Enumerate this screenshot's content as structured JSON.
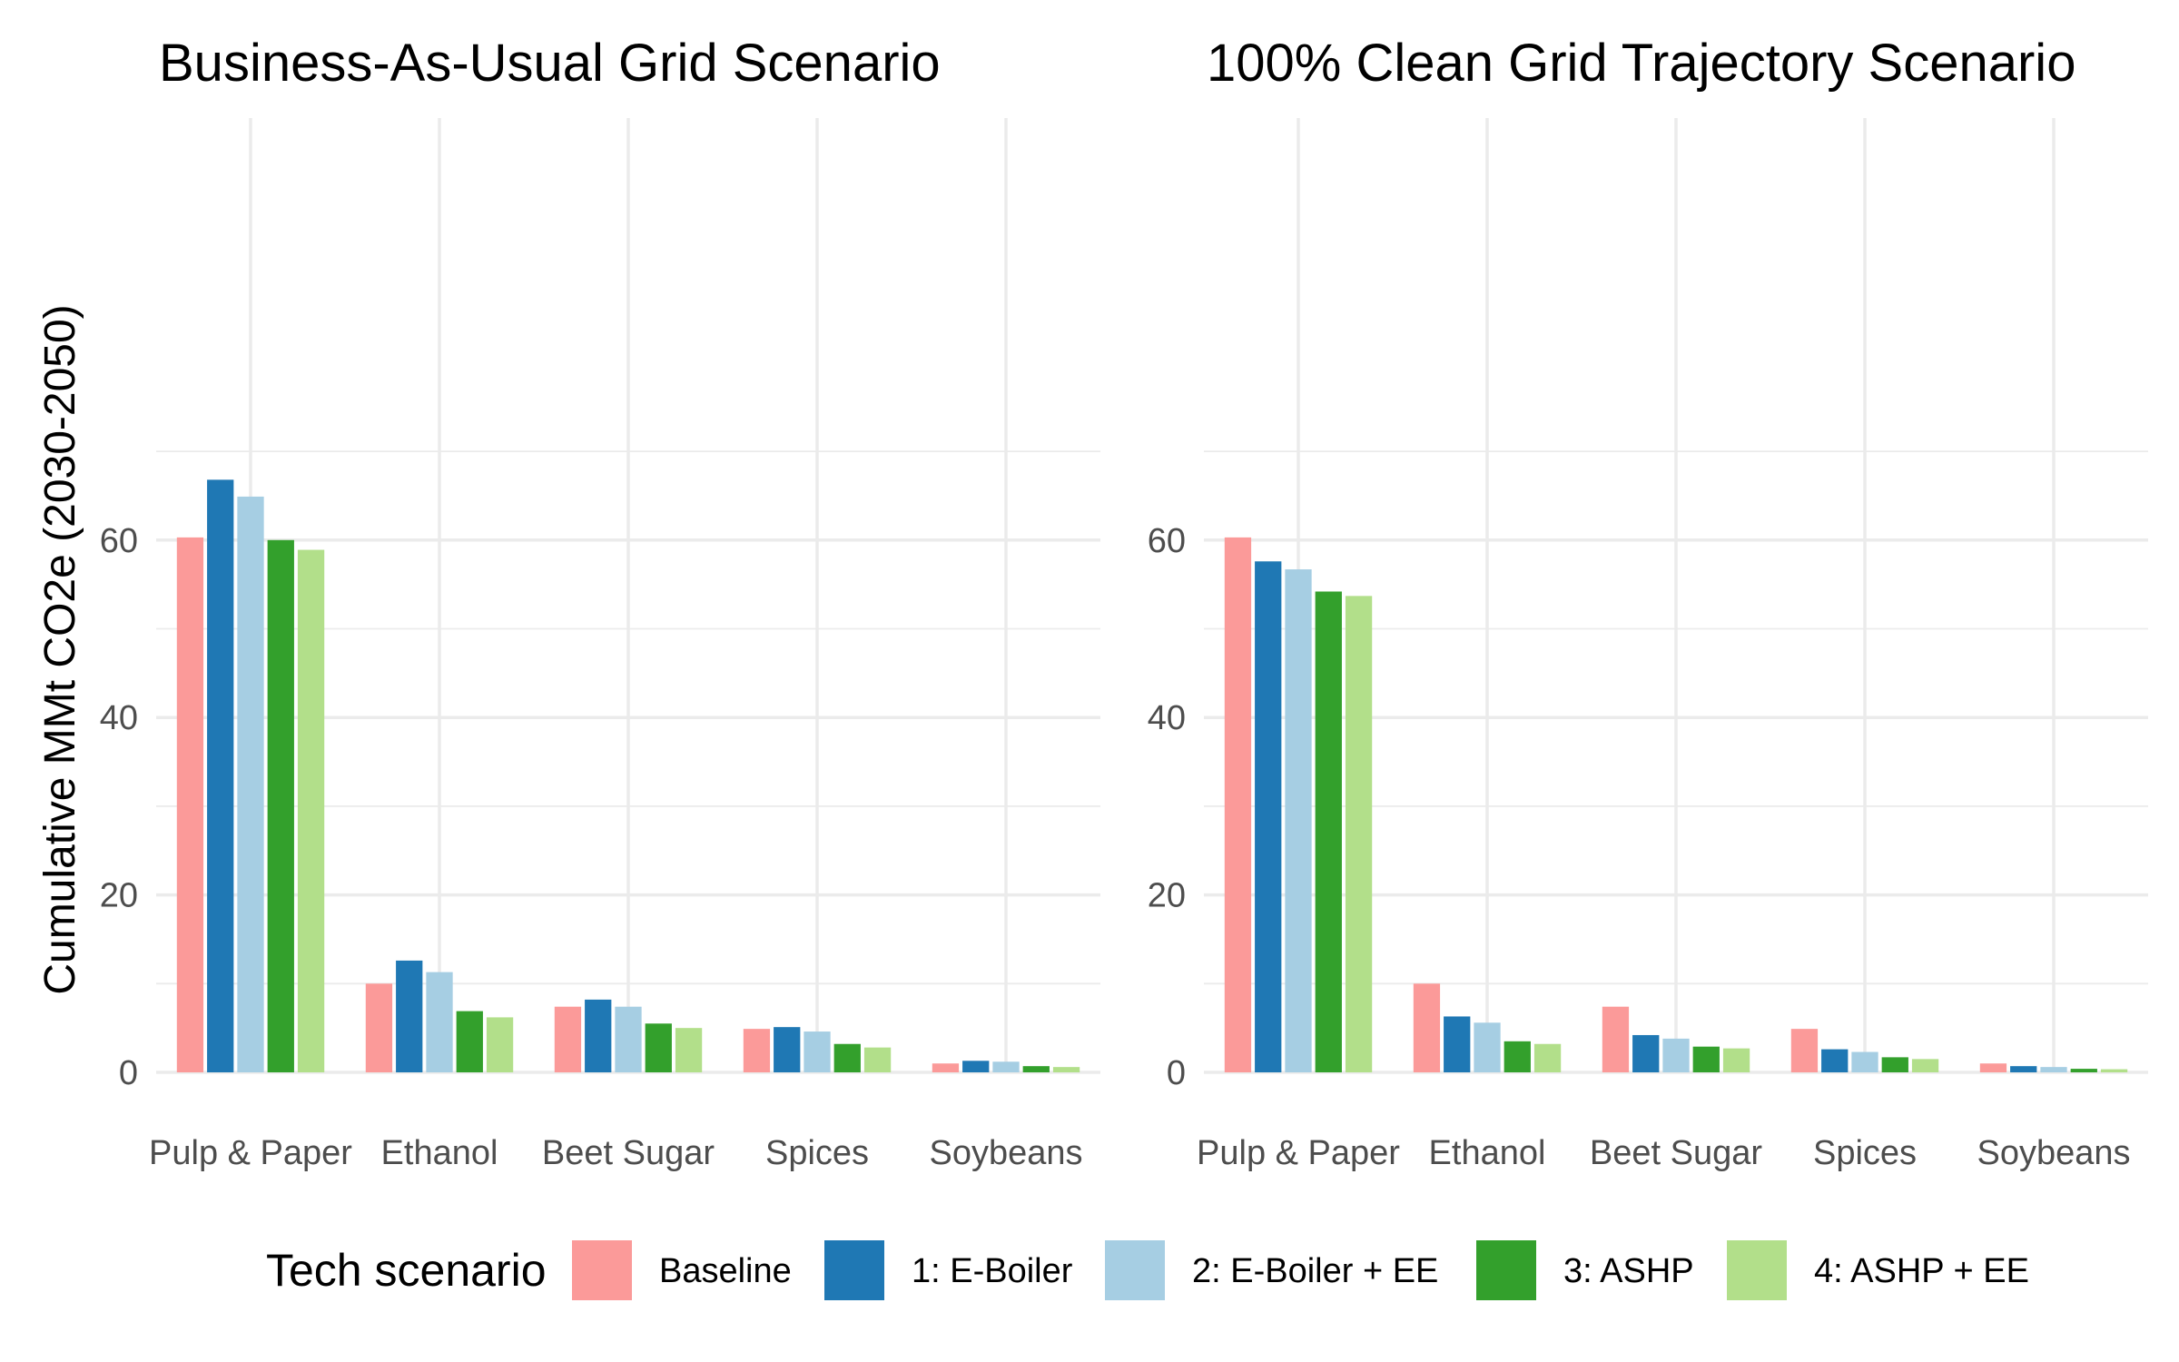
{
  "chart_data": [
    {
      "type": "bar",
      "title": "Business-As-Usual Grid Scenario",
      "xlabel": "",
      "ylabel": "Cumulative MMt CO2e (2030-2050)",
      "ylim": [
        0,
        70
      ],
      "yticks": [
        0,
        20,
        40,
        60
      ],
      "grid": true,
      "categories": [
        "Pulp & Paper",
        "Ethanol",
        "Beet Sugar",
        "Spices",
        "Soybeans"
      ],
      "series": [
        {
          "name": "Baseline",
          "values": [
            60.3,
            10.0,
            7.4,
            4.9,
            1.0
          ]
        },
        {
          "name": "1: E-Boiler",
          "values": [
            66.8,
            12.6,
            8.2,
            5.1,
            1.3
          ]
        },
        {
          "name": "2: E-Boiler + EE",
          "values": [
            64.9,
            11.3,
            7.4,
            4.6,
            1.2
          ]
        },
        {
          "name": "3: ASHP",
          "values": [
            60.0,
            6.9,
            5.5,
            3.2,
            0.7
          ]
        },
        {
          "name": "4: ASHP + EE",
          "values": [
            58.9,
            6.2,
            5.0,
            2.8,
            0.6
          ]
        }
      ]
    },
    {
      "type": "bar",
      "title": "100% Clean Grid Trajectory Scenario",
      "xlabel": "",
      "ylabel": "",
      "ylim": [
        0,
        70
      ],
      "yticks": [
        0,
        20,
        40,
        60
      ],
      "grid": true,
      "categories": [
        "Pulp & Paper",
        "Ethanol",
        "Beet Sugar",
        "Spices",
        "Soybeans"
      ],
      "series": [
        {
          "name": "Baseline",
          "values": [
            60.3,
            10.0,
            7.4,
            4.9,
            1.0
          ]
        },
        {
          "name": "1: E-Boiler",
          "values": [
            57.6,
            6.3,
            4.2,
            2.6,
            0.7
          ]
        },
        {
          "name": "2: E-Boiler + EE",
          "values": [
            56.7,
            5.6,
            3.8,
            2.3,
            0.6
          ]
        },
        {
          "name": "3: ASHP",
          "values": [
            54.2,
            3.5,
            2.9,
            1.7,
            0.4
          ]
        },
        {
          "name": "4: ASHP + EE",
          "values": [
            53.7,
            3.2,
            2.7,
            1.5,
            0.35
          ]
        }
      ]
    }
  ],
  "legend": {
    "title": "Tech scenario",
    "position": "bottom",
    "items": [
      {
        "label": "Baseline",
        "color": "#fb9a99"
      },
      {
        "label": "1: E-Boiler",
        "color": "#1f78b4"
      },
      {
        "label": "2: E-Boiler + EE",
        "color": "#a6cee3"
      },
      {
        "label": "3: ASHP",
        "color": "#33a02c"
      },
      {
        "label": "4: ASHP + EE",
        "color": "#b2df8a"
      }
    ]
  }
}
